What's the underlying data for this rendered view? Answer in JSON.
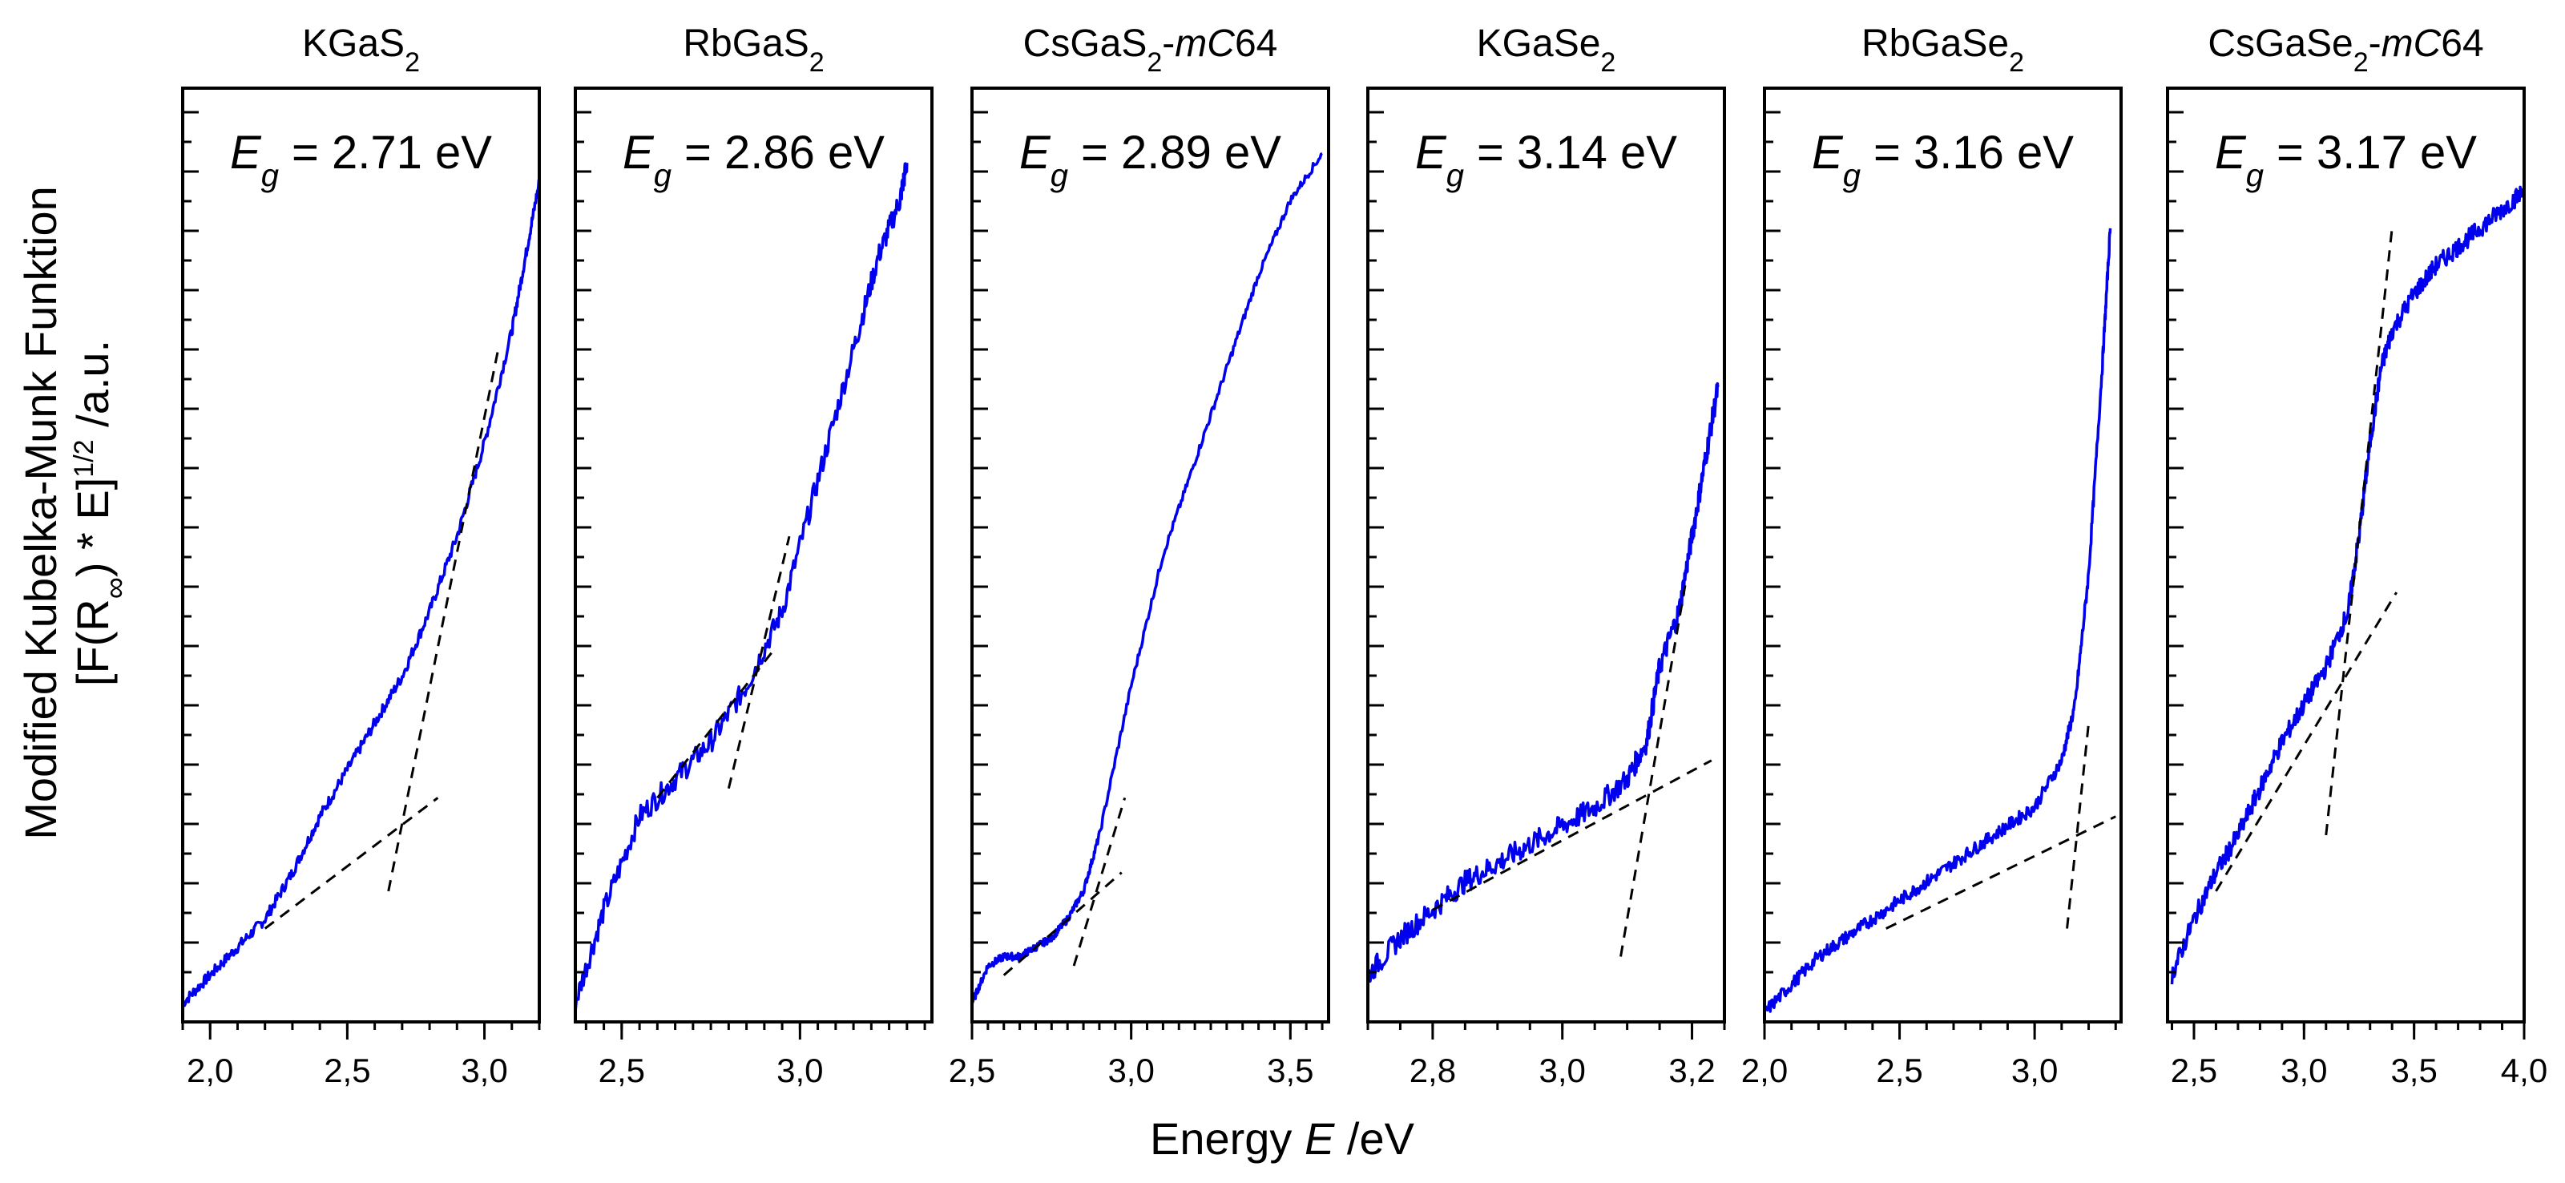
{
  "figure": {
    "ylabel_line1": "Modified Kubelka-Munk Funktion",
    "ylabel_line2_prefix": "[F(R",
    "ylabel_line2_sub": "∞",
    "ylabel_line2_mid": ") * E]",
    "ylabel_line2_sup": "1/2",
    "ylabel_line2_suffix": " /a.u.",
    "xlabel_prefix": "Energy ",
    "xlabel_var": "E",
    "xlabel_suffix": " /eV",
    "series_color": "#0000ee",
    "fit_color": "#000000"
  },
  "chart_data": [
    {
      "type": "line",
      "title_parts": [
        {
          "t": "KGaS",
          "s": ""
        },
        {
          "t": "2",
          "s": "sub"
        }
      ],
      "eg_value": "2.71",
      "eg_unit": "eV",
      "xlim": [
        1.9,
        3.2
      ],
      "xticks": [
        2.0,
        2.5,
        3.0
      ],
      "xtick_labels": [
        "2,0",
        "2,5",
        "3,0"
      ],
      "ylim": [
        0,
        1
      ],
      "series": [
        {
          "x": [
            1.9,
            2.0,
            2.1,
            2.2,
            2.3,
            2.4,
            2.5,
            2.6,
            2.7,
            2.8,
            2.9,
            3.0,
            3.1,
            3.15,
            3.2
          ],
          "y": [
            0.02,
            0.05,
            0.08,
            0.11,
            0.16,
            0.22,
            0.27,
            0.32,
            0.37,
            0.44,
            0.52,
            0.62,
            0.74,
            0.82,
            0.9
          ],
          "noise": 0.006
        }
      ],
      "fits": [
        {
          "x": [
            2.2,
            2.83
          ],
          "y": [
            0.1,
            0.24
          ]
        },
        {
          "x": [
            2.65,
            3.05
          ],
          "y": [
            0.14,
            0.72
          ]
        }
      ]
    },
    {
      "type": "line",
      "title_parts": [
        {
          "t": "RbGaS",
          "s": ""
        },
        {
          "t": "2",
          "s": "sub"
        }
      ],
      "eg_value": "2.86",
      "eg_unit": "eV",
      "xlim": [
        2.37,
        3.37
      ],
      "xticks": [
        2.5,
        3.0
      ],
      "xtick_labels": [
        "2,5",
        "3,0"
      ],
      "ylim": [
        0,
        1
      ],
      "series": [
        {
          "x": [
            2.37,
            2.45,
            2.55,
            2.65,
            2.75,
            2.85,
            2.95,
            3.05,
            3.15,
            3.22,
            3.28,
            3.3
          ],
          "y": [
            0.02,
            0.12,
            0.22,
            0.26,
            0.3,
            0.36,
            0.44,
            0.58,
            0.72,
            0.82,
            0.88,
            0.92
          ],
          "noise": 0.012
        }
      ],
      "fits": [
        {
          "x": [
            2.6,
            2.93
          ],
          "y": [
            0.24,
            0.4
          ]
        },
        {
          "x": [
            2.8,
            2.97
          ],
          "y": [
            0.25,
            0.52
          ]
        }
      ]
    },
    {
      "type": "line",
      "title_parts": [
        {
          "t": "CsGaS",
          "s": ""
        },
        {
          "t": "2",
          "s": "sub"
        },
        {
          "t": "-",
          "s": ""
        },
        {
          "t": "mC",
          "s": "it"
        },
        {
          "t": "64",
          "s": ""
        }
      ],
      "eg_value": "2.89",
      "eg_unit": "eV",
      "xlim": [
        2.5,
        3.62
      ],
      "xticks": [
        2.5,
        3.0,
        3.5
      ],
      "xtick_labels": [
        "2,5",
        "3,0",
        "3,5"
      ],
      "ylim": [
        0,
        1
      ],
      "series": [
        {
          "x": [
            2.5,
            2.55,
            2.6,
            2.65,
            2.7,
            2.75,
            2.8,
            2.85,
            2.9,
            3.0,
            3.1,
            3.2,
            3.3,
            3.4,
            3.5,
            3.6
          ],
          "y": [
            0.02,
            0.06,
            0.07,
            0.07,
            0.08,
            0.09,
            0.11,
            0.14,
            0.2,
            0.36,
            0.5,
            0.6,
            0.7,
            0.8,
            0.88,
            0.93
          ],
          "noise": 0.004
        }
      ],
      "fits": [
        {
          "x": [
            2.6,
            2.97
          ],
          "y": [
            0.05,
            0.16
          ]
        },
        {
          "x": [
            2.82,
            2.98
          ],
          "y": [
            0.06,
            0.24
          ]
        }
      ]
    },
    {
      "type": "line",
      "title_parts": [
        {
          "t": "KGaSe",
          "s": ""
        },
        {
          "t": "2",
          "s": "sub"
        }
      ],
      "eg_value": "3.14",
      "eg_unit": "eV",
      "xlim": [
        2.7,
        3.25
      ],
      "xticks": [
        2.8,
        3.0,
        3.2
      ],
      "xtick_labels": [
        "2,8",
        "3,0",
        "3,2"
      ],
      "ylim": [
        0,
        1
      ],
      "series": [
        {
          "x": [
            2.7,
            2.75,
            2.8,
            2.85,
            2.9,
            2.95,
            3.0,
            3.05,
            3.1,
            3.13,
            3.15,
            3.18,
            3.2,
            3.22,
            3.24
          ],
          "y": [
            0.05,
            0.09,
            0.12,
            0.15,
            0.17,
            0.19,
            0.21,
            0.23,
            0.26,
            0.3,
            0.38,
            0.44,
            0.52,
            0.6,
            0.68
          ],
          "noise": 0.012
        }
      ],
      "fits": [
        {
          "x": [
            2.8,
            3.23
          ],
          "y": [
            0.12,
            0.28
          ]
        },
        {
          "x": [
            3.09,
            3.19
          ],
          "y": [
            0.07,
            0.47
          ]
        }
      ]
    },
    {
      "type": "line",
      "title_parts": [
        {
          "t": "RbGaSe",
          "s": ""
        },
        {
          "t": "2",
          "s": "sub"
        }
      ],
      "eg_value": "3.16",
      "eg_unit": "eV",
      "xlim": [
        2.0,
        3.32
      ],
      "xticks": [
        2.0,
        2.5,
        3.0
      ],
      "xtick_labels": [
        "2,0",
        "2,5",
        "3,0"
      ],
      "ylim": [
        0,
        1
      ],
      "series": [
        {
          "x": [
            2.0,
            2.1,
            2.2,
            2.3,
            2.4,
            2.5,
            2.6,
            2.7,
            2.8,
            2.9,
            3.0,
            3.1,
            3.15,
            3.2,
            3.25,
            3.28
          ],
          "y": [
            0.01,
            0.04,
            0.07,
            0.09,
            0.11,
            0.13,
            0.15,
            0.17,
            0.19,
            0.21,
            0.23,
            0.28,
            0.34,
            0.48,
            0.7,
            0.85
          ],
          "noise": 0.007
        }
      ],
      "fits": [
        {
          "x": [
            2.45,
            3.3
          ],
          "y": [
            0.1,
            0.22
          ]
        },
        {
          "x": [
            3.12,
            3.2
          ],
          "y": [
            0.1,
            0.32
          ]
        }
      ]
    },
    {
      "type": "line",
      "title_parts": [
        {
          "t": "CsGaSe",
          "s": ""
        },
        {
          "t": "2",
          "s": "sub"
        },
        {
          "t": "-",
          "s": ""
        },
        {
          "t": "mC",
          "s": "it"
        },
        {
          "t": "64",
          "s": ""
        }
      ],
      "eg_value": "3.17",
      "eg_unit": "eV",
      "xlim": [
        2.38,
        4.0
      ],
      "xticks": [
        2.5,
        3.0,
        3.5,
        4.0
      ],
      "xtick_labels": [
        "2,5",
        "3,0",
        "3,5",
        "4,0"
      ],
      "ylim": [
        0,
        1
      ],
      "series": [
        {
          "x": [
            2.4,
            2.5,
            2.6,
            2.7,
            2.8,
            2.9,
            3.0,
            3.1,
            3.2,
            3.25,
            3.3,
            3.35,
            3.4,
            3.5,
            3.6,
            3.7,
            3.8,
            3.9,
            4.0
          ],
          "y": [
            0.05,
            0.11,
            0.16,
            0.2,
            0.25,
            0.3,
            0.34,
            0.38,
            0.44,
            0.52,
            0.62,
            0.7,
            0.74,
            0.78,
            0.81,
            0.83,
            0.85,
            0.87,
            0.89
          ],
          "noise": 0.01
        }
      ],
      "fits": [
        {
          "x": [
            2.6,
            3.42
          ],
          "y": [
            0.14,
            0.46
          ]
        },
        {
          "x": [
            3.1,
            3.4
          ],
          "y": [
            0.2,
            0.85
          ]
        }
      ]
    }
  ]
}
